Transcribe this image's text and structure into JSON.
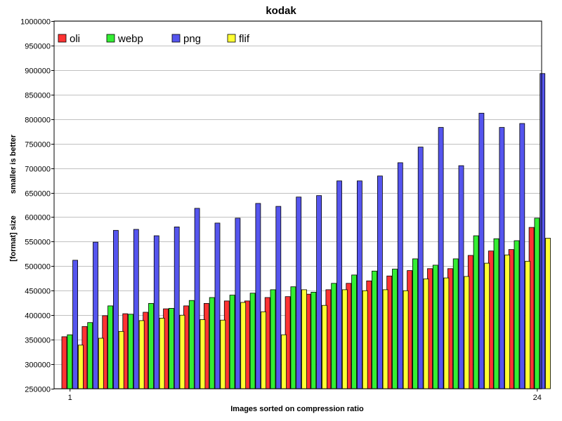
{
  "chart_data": {
    "type": "bar",
    "title": "kodak",
    "xlabel": "Images sorted on compression ratio",
    "ylabel": "[format] size",
    "ylabel2": "smaller is better",
    "ylim": [
      250000,
      1000000
    ],
    "yticks": [
      250000,
      300000,
      350000,
      400000,
      450000,
      500000,
      550000,
      600000,
      650000,
      700000,
      750000,
      800000,
      850000,
      900000,
      950000,
      1000000
    ],
    "xtick_labels": [
      {
        "index": 0,
        "label": "1"
      },
      {
        "index": 23,
        "label": "24"
      }
    ],
    "grid": true,
    "legend_position": "top-left",
    "series": [
      {
        "name": "oli",
        "color": "#ff3333",
        "values": [
          356000,
          377000,
          399000,
          403000,
          406000,
          413000,
          419000,
          424000,
          429000,
          429000,
          436000,
          438000,
          443000,
          452000,
          465000,
          470000,
          480000,
          491000,
          495000,
          495000,
          522000,
          531000,
          534000,
          579000
        ]
      },
      {
        "name": "webp",
        "color": "#33ee33",
        "values": [
          360000,
          385000,
          419000,
          402000,
          424000,
          414000,
          430000,
          436000,
          441000,
          445000,
          452000,
          458000,
          447000,
          465000,
          482000,
          490000,
          494000,
          515000,
          502000,
          515000,
          562000,
          556000,
          552000,
          598000
        ]
      },
      {
        "name": "png",
        "color": "#5555ee",
        "values": [
          512000,
          549000,
          573000,
          575000,
          562000,
          580000,
          618000,
          588000,
          598000,
          628000,
          622000,
          641000,
          644000,
          674000,
          674000,
          684000,
          711000,
          743000,
          783000,
          705000,
          812000,
          783000,
          791000,
          893000
        ]
      },
      {
        "name": "flif",
        "color": "#ffff33",
        "values": [
          339000,
          353000,
          367000,
          389000,
          394000,
          400000,
          391000,
          390000,
          426000,
          407000,
          360000,
          452000,
          420000,
          452000,
          450000,
          452000,
          450000,
          474000,
          476000,
          479000,
          506000,
          523000,
          510000,
          557000
        ]
      }
    ]
  }
}
